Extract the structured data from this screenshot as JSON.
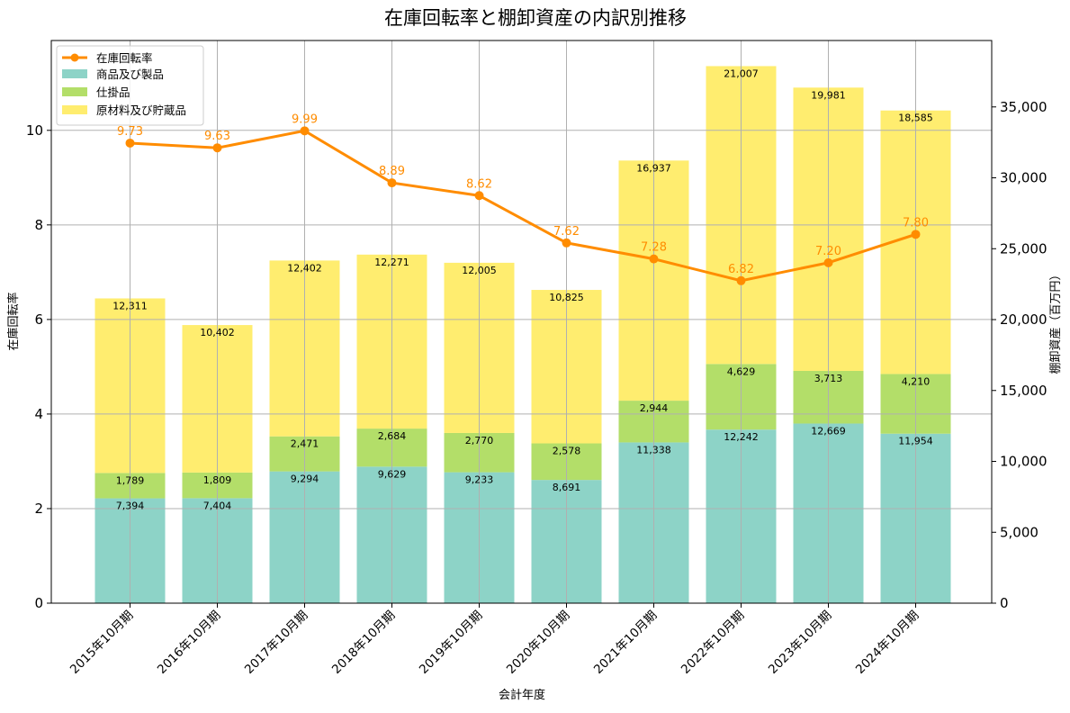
{
  "chart_data": {
    "type": "bar",
    "title": "在庫回転率と棚卸資産の内訳別推移",
    "xlabel": "会計年度",
    "ylabel_left": "在庫回転率",
    "ylabel_right": "棚卸資産（百万円）",
    "categories": [
      "2015年10月期",
      "2016年10月期",
      "2017年10月期",
      "2018年10月期",
      "2019年10月期",
      "2020年10月期",
      "2021年10月期",
      "2022年10月期",
      "2023年10月期",
      "2024年10月期"
    ],
    "bar_series": [
      {
        "name": "商品及び製品",
        "color": "#8dd3c7",
        "values": [
          7394,
          7404,
          9294,
          9629,
          9233,
          8691,
          11338,
          12242,
          12669,
          11954
        ]
      },
      {
        "name": "仕掛品",
        "color": "#b3de69",
        "values": [
          1789,
          1809,
          2471,
          2684,
          2770,
          2578,
          2944,
          4629,
          3713,
          4210
        ]
      },
      {
        "name": "原材料及び貯蔵品",
        "color": "#ffed6f",
        "values": [
          12311,
          10402,
          12402,
          12271,
          12005,
          10825,
          16937,
          21007,
          19981,
          18585
        ]
      }
    ],
    "line_series": {
      "name": "在庫回転率",
      "color": "#ff8c00",
      "values": [
        9.73,
        9.63,
        9.99,
        8.89,
        8.62,
        7.62,
        7.28,
        6.82,
        7.2,
        7.8
      ]
    },
    "y_left": {
      "range": [
        0,
        11.9
      ],
      "ticks": [
        0,
        2,
        4,
        6,
        8,
        10
      ]
    },
    "y_right": {
      "range": [
        0,
        39684
      ],
      "ticks": [
        0,
        5000,
        10000,
        15000,
        20000,
        25000,
        30000,
        35000
      ],
      "tick_labels": [
        "0",
        "5,000",
        "10,000",
        "15,000",
        "20,000",
        "25,000",
        "30,000",
        "35,000"
      ]
    },
    "grid": true,
    "legend_position": "top-left"
  }
}
